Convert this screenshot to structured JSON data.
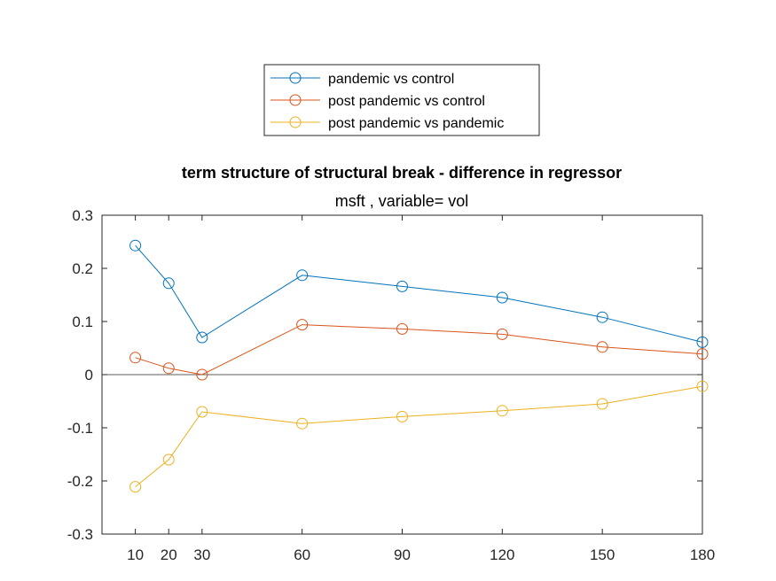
{
  "chart_data": {
    "type": "line",
    "title": "term structure of structural break - difference in regressor",
    "subtitle": "msft  , variable= vol",
    "xlabel": "",
    "ylabel": "",
    "x": [
      10,
      20,
      30,
      60,
      90,
      120,
      150,
      180
    ],
    "xlim": [
      0,
      180
    ],
    "ylim": [
      -0.3,
      0.3
    ],
    "yticks": [
      -0.3,
      -0.2,
      -0.1,
      0,
      0.1,
      0.2,
      0.3
    ],
    "ytick_labels": [
      "-0.3",
      "-0.2",
      "-0.1",
      "0",
      "0.1",
      "0.2",
      "0.3"
    ],
    "xtick_labels": [
      "10",
      "20",
      "30",
      "60",
      "90",
      "120",
      "150",
      "180"
    ],
    "zero_line": true,
    "grid": false,
    "legend_position": "top",
    "series": [
      {
        "name": "pandemic vs control",
        "color": "#0072BD",
        "values": [
          0.243,
          0.172,
          0.07,
          0.187,
          0.166,
          0.145,
          0.108,
          0.061
        ]
      },
      {
        "name": "post pandemic vs control",
        "color": "#D95319",
        "values": [
          0.032,
          0.012,
          0.0,
          0.094,
          0.086,
          0.076,
          0.052,
          0.039
        ]
      },
      {
        "name": "post pandemic vs pandemic",
        "color": "#EDB120",
        "values": [
          -0.211,
          -0.16,
          -0.07,
          -0.092,
          -0.079,
          -0.068,
          -0.055,
          -0.022
        ]
      }
    ]
  }
}
